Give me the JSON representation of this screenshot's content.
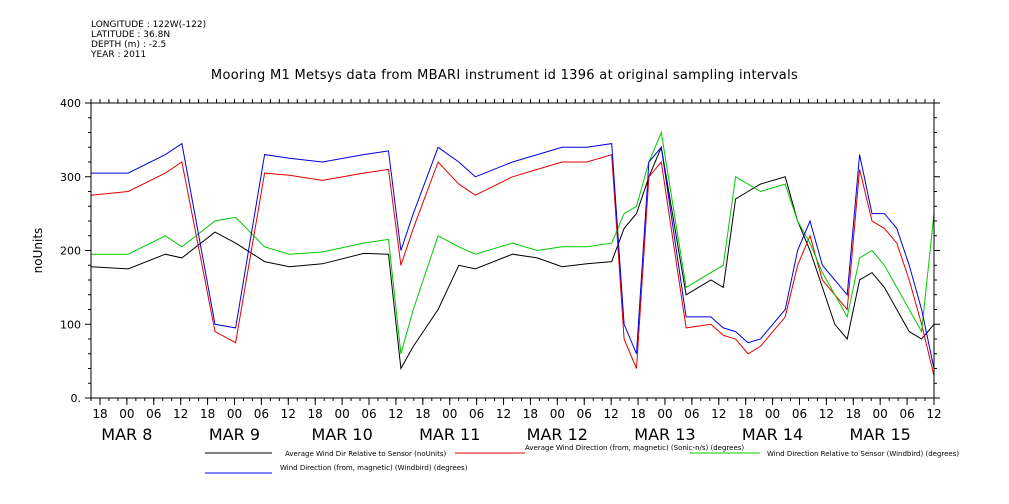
{
  "header": {
    "longitude": "LONGITUDE : 122W(-122)",
    "latitude": "LATITUDE : 36.8N",
    "depth": "DEPTH (m) : -2.5",
    "year": "YEAR : 2011"
  },
  "chart_data": {
    "type": "line",
    "title": "Mooring M1 Metsys data from MBARI instrument id 1396 at original sampling intervals",
    "ylabel": "noUnits",
    "xlabel": "",
    "ylim": [
      0,
      400
    ],
    "xlim_hours_label": "Mar 7 16:00 to Mar 15 12:00",
    "yticks": [
      "0.",
      "100",
      "200",
      "300",
      "400"
    ],
    "xticks_hour": [
      "18",
      "00",
      "06",
      "12",
      "18",
      "00",
      "06",
      "12",
      "18",
      "00",
      "06",
      "12",
      "18",
      "00",
      "06",
      "12",
      "18",
      "00",
      "06",
      "12",
      "18",
      "00",
      "06",
      "12",
      "18",
      "00",
      "06",
      "12",
      "18",
      "00",
      "06",
      "12"
    ],
    "xticks_day": [
      "MAR  8",
      "MAR  9",
      "MAR 10",
      "MAR 11",
      "MAR 12",
      "MAR 13",
      "MAR 14",
      "MAR 15"
    ],
    "grid": false,
    "legend_placement": "bottom",
    "series": [
      {
        "name": "Average Wind Dir Relative to Sensor (noUnits)",
        "color": "#000000",
        "points": [
          [
            0,
            178
          ],
          [
            18,
            175
          ],
          [
            36,
            195
          ],
          [
            44,
            190
          ],
          [
            60,
            225
          ],
          [
            70,
            210
          ],
          [
            84,
            185
          ],
          [
            96,
            178
          ],
          [
            112,
            182
          ],
          [
            132,
            196
          ],
          [
            144,
            195
          ],
          [
            150,
            40
          ],
          [
            156,
            70
          ],
          [
            168,
            120
          ],
          [
            178,
            180
          ],
          [
            186,
            175
          ],
          [
            204,
            195
          ],
          [
            216,
            190
          ],
          [
            228,
            178
          ],
          [
            240,
            182
          ],
          [
            252,
            185
          ],
          [
            258,
            230
          ],
          [
            264,
            250
          ],
          [
            270,
            300
          ],
          [
            276,
            340
          ],
          [
            288,
            140
          ],
          [
            300,
            160
          ],
          [
            306,
            150
          ],
          [
            312,
            270
          ],
          [
            318,
            280
          ],
          [
            324,
            290
          ],
          [
            336,
            300
          ],
          [
            342,
            240
          ],
          [
            348,
            200
          ],
          [
            354,
            150
          ],
          [
            360,
            100
          ],
          [
            366,
            80
          ],
          [
            372,
            160
          ],
          [
            378,
            170
          ],
          [
            384,
            150
          ],
          [
            390,
            120
          ],
          [
            396,
            90
          ],
          [
            402,
            80
          ],
          [
            408,
            100
          ]
        ]
      },
      {
        "name": "Average Wind Direction (from, magnetic) (Sonic-n/s) (degrees)",
        "color": "#e00000",
        "points": [
          [
            0,
            275
          ],
          [
            18,
            280
          ],
          [
            36,
            305
          ],
          [
            44,
            320
          ],
          [
            60,
            90
          ],
          [
            70,
            75
          ],
          [
            84,
            305
          ],
          [
            96,
            302
          ],
          [
            112,
            295
          ],
          [
            132,
            305
          ],
          [
            144,
            310
          ],
          [
            150,
            180
          ],
          [
            156,
            230
          ],
          [
            168,
            320
          ],
          [
            178,
            290
          ],
          [
            186,
            275
          ],
          [
            204,
            300
          ],
          [
            216,
            310
          ],
          [
            228,
            320
          ],
          [
            240,
            320
          ],
          [
            252,
            330
          ],
          [
            258,
            80
          ],
          [
            264,
            40
          ],
          [
            270,
            300
          ],
          [
            276,
            320
          ],
          [
            288,
            95
          ],
          [
            300,
            100
          ],
          [
            306,
            85
          ],
          [
            312,
            80
          ],
          [
            318,
            60
          ],
          [
            324,
            70
          ],
          [
            336,
            110
          ],
          [
            342,
            180
          ],
          [
            348,
            220
          ],
          [
            354,
            160
          ],
          [
            360,
            140
          ],
          [
            366,
            120
          ],
          [
            372,
            310
          ],
          [
            378,
            240
          ],
          [
            384,
            230
          ],
          [
            390,
            210
          ],
          [
            396,
            160
          ],
          [
            402,
            100
          ],
          [
            408,
            30
          ]
        ]
      },
      {
        "name": "Wind Direction Relative to Sensor (Windbird) (degrees)",
        "color": "#00c800",
        "points": [
          [
            0,
            195
          ],
          [
            18,
            195
          ],
          [
            36,
            220
          ],
          [
            44,
            205
          ],
          [
            60,
            240
          ],
          [
            70,
            245
          ],
          [
            84,
            205
          ],
          [
            96,
            195
          ],
          [
            112,
            198
          ],
          [
            132,
            210
          ],
          [
            144,
            215
          ],
          [
            150,
            60
          ],
          [
            156,
            120
          ],
          [
            168,
            220
          ],
          [
            178,
            205
          ],
          [
            186,
            195
          ],
          [
            204,
            210
          ],
          [
            216,
            200
          ],
          [
            228,
            205
          ],
          [
            240,
            205
          ],
          [
            252,
            210
          ],
          [
            258,
            250
          ],
          [
            264,
            260
          ],
          [
            270,
            320
          ],
          [
            276,
            360
          ],
          [
            288,
            150
          ],
          [
            300,
            170
          ],
          [
            306,
            180
          ],
          [
            312,
            300
          ],
          [
            318,
            290
          ],
          [
            324,
            280
          ],
          [
            336,
            290
          ],
          [
            342,
            240
          ],
          [
            348,
            210
          ],
          [
            354,
            170
          ],
          [
            360,
            140
          ],
          [
            366,
            110
          ],
          [
            372,
            190
          ],
          [
            378,
            200
          ],
          [
            384,
            180
          ],
          [
            390,
            150
          ],
          [
            396,
            120
          ],
          [
            402,
            90
          ],
          [
            408,
            250
          ]
        ]
      },
      {
        "name": "Wind Direction (from, magnetic) (Windbird) (degrees)",
        "color": "#0000e0",
        "points": [
          [
            0,
            305
          ],
          [
            18,
            305
          ],
          [
            36,
            330
          ],
          [
            44,
            345
          ],
          [
            60,
            100
          ],
          [
            70,
            95
          ],
          [
            84,
            330
          ],
          [
            96,
            325
          ],
          [
            112,
            320
          ],
          [
            132,
            330
          ],
          [
            144,
            335
          ],
          [
            150,
            200
          ],
          [
            156,
            250
          ],
          [
            168,
            340
          ],
          [
            178,
            320
          ],
          [
            186,
            300
          ],
          [
            204,
            320
          ],
          [
            216,
            330
          ],
          [
            228,
            340
          ],
          [
            240,
            340
          ],
          [
            252,
            345
          ],
          [
            258,
            100
          ],
          [
            264,
            60
          ],
          [
            270,
            320
          ],
          [
            276,
            340
          ],
          [
            288,
            110
          ],
          [
            300,
            110
          ],
          [
            306,
            95
          ],
          [
            312,
            90
          ],
          [
            318,
            75
          ],
          [
            324,
            80
          ],
          [
            336,
            120
          ],
          [
            342,
            200
          ],
          [
            348,
            240
          ],
          [
            354,
            180
          ],
          [
            360,
            160
          ],
          [
            366,
            140
          ],
          [
            372,
            330
          ],
          [
            378,
            250
          ],
          [
            384,
            250
          ],
          [
            390,
            230
          ],
          [
            396,
            180
          ],
          [
            402,
            120
          ],
          [
            408,
            40
          ]
        ]
      }
    ]
  }
}
